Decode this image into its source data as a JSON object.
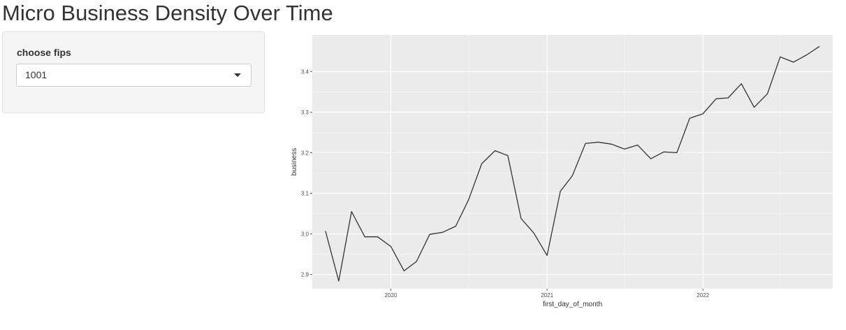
{
  "page": {
    "title": "Micro Business Density Over Time"
  },
  "sidebar": {
    "field_label": "choose fips",
    "select_value": "1001",
    "caret_icon": "chevron-down-icon"
  },
  "chart_data": {
    "type": "line",
    "xlabel": "first_day_of_month",
    "ylabel": "business",
    "x_ticks": [
      "2020",
      "2021",
      "2022"
    ],
    "y_ticks": [
      "2.9",
      "3.0",
      "3.1",
      "3.2",
      "3.3",
      "3.4"
    ],
    "ylim": [
      2.865,
      3.49
    ],
    "xlim": [
      "2019-07-01",
      "2022-11-01"
    ],
    "grid": true,
    "panel_background": "#ebebeb",
    "line_color": "#333333",
    "series": [
      {
        "x": [
          "2019-08-01",
          "2019-09-01",
          "2019-10-01",
          "2019-11-01",
          "2019-12-01",
          "2020-01-01",
          "2020-02-01",
          "2020-03-01",
          "2020-04-01",
          "2020-05-01",
          "2020-06-01",
          "2020-07-01",
          "2020-08-01",
          "2020-09-01",
          "2020-10-01",
          "2020-11-01",
          "2020-12-01",
          "2021-01-01",
          "2021-02-01",
          "2021-03-01",
          "2021-04-01",
          "2021-05-01",
          "2021-06-01",
          "2021-07-01",
          "2021-08-01",
          "2021-09-01",
          "2021-10-01",
          "2021-11-01",
          "2021-12-01",
          "2022-01-01",
          "2022-02-01",
          "2022-03-01",
          "2022-04-01",
          "2022-05-01",
          "2022-06-01",
          "2022-07-01",
          "2022-08-01",
          "2022-09-01",
          "2022-10-01"
        ],
        "values": [
          3.007,
          2.884,
          3.055,
          2.993,
          2.993,
          2.969,
          2.909,
          2.932,
          2.999,
          3.004,
          3.019,
          3.084,
          3.173,
          3.205,
          3.193,
          3.038,
          3.002,
          2.947,
          3.105,
          3.143,
          3.223,
          3.226,
          3.221,
          3.209,
          3.219,
          3.185,
          3.202,
          3.2,
          3.285,
          3.296,
          3.333,
          3.335,
          3.37,
          3.312,
          3.345,
          3.436,
          3.423,
          3.441,
          3.462
        ]
      }
    ]
  }
}
